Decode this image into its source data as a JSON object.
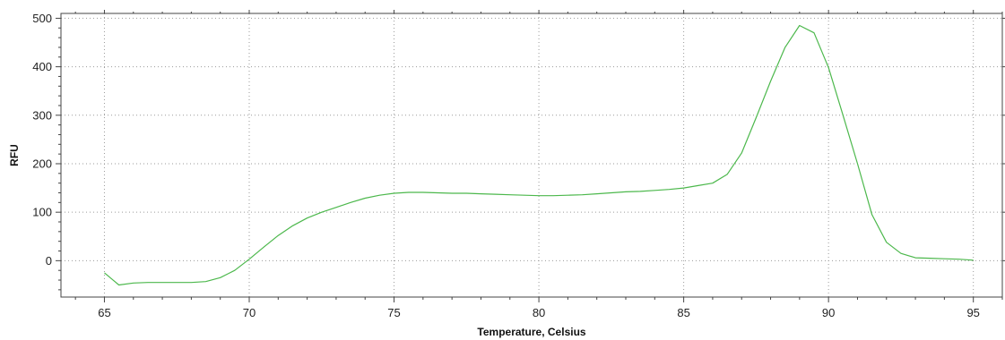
{
  "chart_data": {
    "type": "line",
    "title": "",
    "xlabel": "Temperature, Celsius",
    "ylabel": "RFU",
    "xlim": [
      63.5,
      96.0
    ],
    "ylim": [
      -75,
      510
    ],
    "x_ticks": [
      65,
      70,
      75,
      80,
      85,
      90,
      95
    ],
    "x_tick_labels": [
      "65",
      "70",
      "75",
      "80",
      "85",
      "90",
      "95"
    ],
    "y_ticks": [
      0,
      100,
      200,
      300,
      400,
      500
    ],
    "y_tick_labels": [
      "0",
      "100",
      "200",
      "300",
      "400",
      "500"
    ],
    "grid": true,
    "legend": "none",
    "series": [
      {
        "color": "#4cb84c",
        "x": [
          65.0,
          65.5,
          66.0,
          66.5,
          67.0,
          67.5,
          68.0,
          68.5,
          69.0,
          69.5,
          70.0,
          70.5,
          71.0,
          71.5,
          72.0,
          72.5,
          73.0,
          73.5,
          74.0,
          74.5,
          75.0,
          75.5,
          76.0,
          76.5,
          77.0,
          77.5,
          78.0,
          78.5,
          79.0,
          79.5,
          80.0,
          80.5,
          81.0,
          81.5,
          82.0,
          82.5,
          83.0,
          83.5,
          84.0,
          84.5,
          85.0,
          85.5,
          86.0,
          86.5,
          87.0,
          87.5,
          88.0,
          88.5,
          89.0,
          89.5,
          90.0,
          90.5,
          91.0,
          91.5,
          92.0,
          92.5,
          93.0,
          93.5,
          94.0,
          94.5,
          95.0
        ],
        "y": [
          -25,
          -50,
          -46,
          -45,
          -45,
          -45,
          -45,
          -43,
          -35,
          -20,
          3,
          28,
          52,
          72,
          88,
          100,
          110,
          120,
          129,
          135,
          139,
          141,
          141,
          140,
          139,
          139,
          138,
          137,
          136,
          135,
          134,
          134,
          135,
          136,
          138,
          140,
          142,
          143,
          145,
          147,
          150,
          155,
          160,
          178,
          222,
          295,
          370,
          440,
          485,
          470,
          398,
          300,
          200,
          95,
          38,
          15,
          6,
          5,
          4,
          3,
          1
        ]
      }
    ]
  }
}
